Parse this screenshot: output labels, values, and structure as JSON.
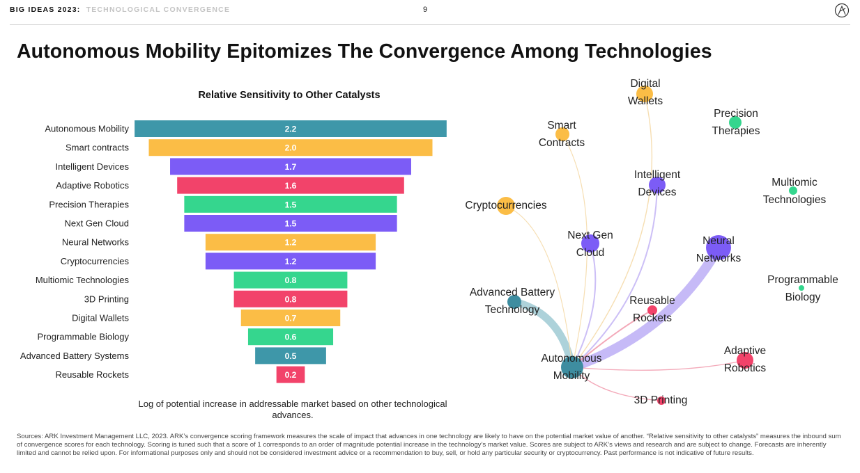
{
  "header": {
    "series": "BIG IDEAS 2023:",
    "topic": "TECHNOLOGICAL CONVERGENCE",
    "page_number": "9"
  },
  "title": "Autonomous Mobility Epitomizes The Convergence Among Technologies",
  "chart_data": [
    {
      "type": "bar",
      "orientation": "horizontal",
      "title": "Relative Sensitivity to Other Catalysts",
      "categories": [
        "Autonomous Mobility",
        "Smart contracts",
        "Intelligent Devices",
        "Adaptive Robotics",
        "Precision Therapies",
        "Next Gen Cloud",
        "Neural Networks",
        "Cryptocurrencies",
        "Multiomic Technologies",
        "3D Printing",
        "Digital Wallets",
        "Programmable Biology",
        "Advanced Battery Systems",
        "Reusable Rockets"
      ],
      "values": [
        2.2,
        2.0,
        1.7,
        1.6,
        1.5,
        1.5,
        1.2,
        1.2,
        0.8,
        0.8,
        0.7,
        0.6,
        0.5,
        0.2
      ],
      "value_labels": [
        "2.2",
        "2.0",
        "1.7",
        "1.6",
        "1.5",
        "1.5",
        "1.2",
        "1.2",
        "0.8",
        "0.8",
        "0.7",
        "0.6",
        "0.5",
        "0.2"
      ],
      "colors": [
        "#3e97a9",
        "#fbbd46",
        "#7c5cf6",
        "#f2436a",
        "#35d68e",
        "#7c5cf6",
        "#fbbd46",
        "#7c5cf6",
        "#35d68e",
        "#f2436a",
        "#fbbd46",
        "#35d68e",
        "#3e97a9",
        "#f2436a"
      ],
      "caption": "Log of potential increase in addressable market based on other technological advances."
    },
    {
      "type": "network",
      "nodes": [
        {
          "id": "autonomous",
          "label": [
            "Autonomous",
            "Mobility"
          ],
          "color": "#3e8da0"
        },
        {
          "id": "digital_wallets",
          "label": [
            "Digital",
            "Wallets"
          ],
          "color": "#fbbd46"
        },
        {
          "id": "precision",
          "label": [
            "Precision",
            "Therapies"
          ],
          "color": "#35d68e"
        },
        {
          "id": "smart",
          "label": [
            "Smart",
            "Contracts"
          ],
          "color": "#fbbd46"
        },
        {
          "id": "intelligent",
          "label": [
            "Intelligent",
            "Devices"
          ],
          "color": "#7c5cf6"
        },
        {
          "id": "multiomic",
          "label": [
            "Multiomic",
            "Technologies"
          ],
          "color": "#35d68e"
        },
        {
          "id": "crypto",
          "label": [
            "Cryptocurrencies"
          ],
          "color": "#fbbd46"
        },
        {
          "id": "nextgen",
          "label": [
            "Next Gen",
            "Cloud"
          ],
          "color": "#7c5cf6"
        },
        {
          "id": "neural",
          "label": [
            "Neural",
            "Networks"
          ],
          "color": "#7c5cf6"
        },
        {
          "id": "programmable",
          "label": [
            "Programmable",
            "Biology"
          ],
          "color": "#35d68e"
        },
        {
          "id": "battery",
          "label": [
            "Advanced Battery",
            "Technology"
          ],
          "color": "#3e8da0"
        },
        {
          "id": "rockets",
          "label": [
            "Reusable",
            "Rockets"
          ],
          "color": "#f2436a"
        },
        {
          "id": "adaptive",
          "label": [
            "Adaptive",
            "Robotics"
          ],
          "color": "#f2436a"
        },
        {
          "id": "printing",
          "label": [
            "3D Printing"
          ],
          "color": "#f2436a"
        }
      ],
      "edges": [
        {
          "from": "neural",
          "to": "autonomous",
          "color": "#c3b6f7"
        },
        {
          "from": "battery",
          "to": "autonomous",
          "color": "#a9d0d8"
        },
        {
          "from": "intelligent",
          "to": "autonomous",
          "color": "#c9bcf6"
        },
        {
          "from": "nextgen",
          "to": "autonomous",
          "color": "#c9bcf6"
        },
        {
          "from": "rockets",
          "to": "autonomous",
          "color": "#f2a3b4"
        },
        {
          "from": "digital_wallets",
          "to": "autonomous",
          "color": "#f6dcae"
        },
        {
          "from": "smart",
          "to": "autonomous",
          "color": "#f6dcae"
        },
        {
          "from": "crypto",
          "to": "autonomous",
          "color": "#f6dcae"
        },
        {
          "from": "printing",
          "to": "autonomous",
          "color": "#f2a3b4"
        },
        {
          "from": "adaptive",
          "to": "autonomous",
          "color": "#f2a3b4"
        }
      ]
    }
  ],
  "sources": "Sources: ARK Investment Management LLC, 2023. ARK’s convergence scoring framework measures the scale of impact that advances in one technology are likely to have on the potential market value of another. “Relative sensitivity to other catalysts” measures the inbound sum of convergence scores for each technology. Scoring is tuned such that a score of 1 corresponds to an order of magnitude potential increase in the technology’s market value. Scores are subject to ARK’s views and research and are subject to change. Forecasts are inherently limited and cannot be relied upon. For informational purposes only and should not be considered investment advice or a recommendation to buy, sell, or hold any particular security or cryptocurrency. Past performance is not indicative of future results."
}
